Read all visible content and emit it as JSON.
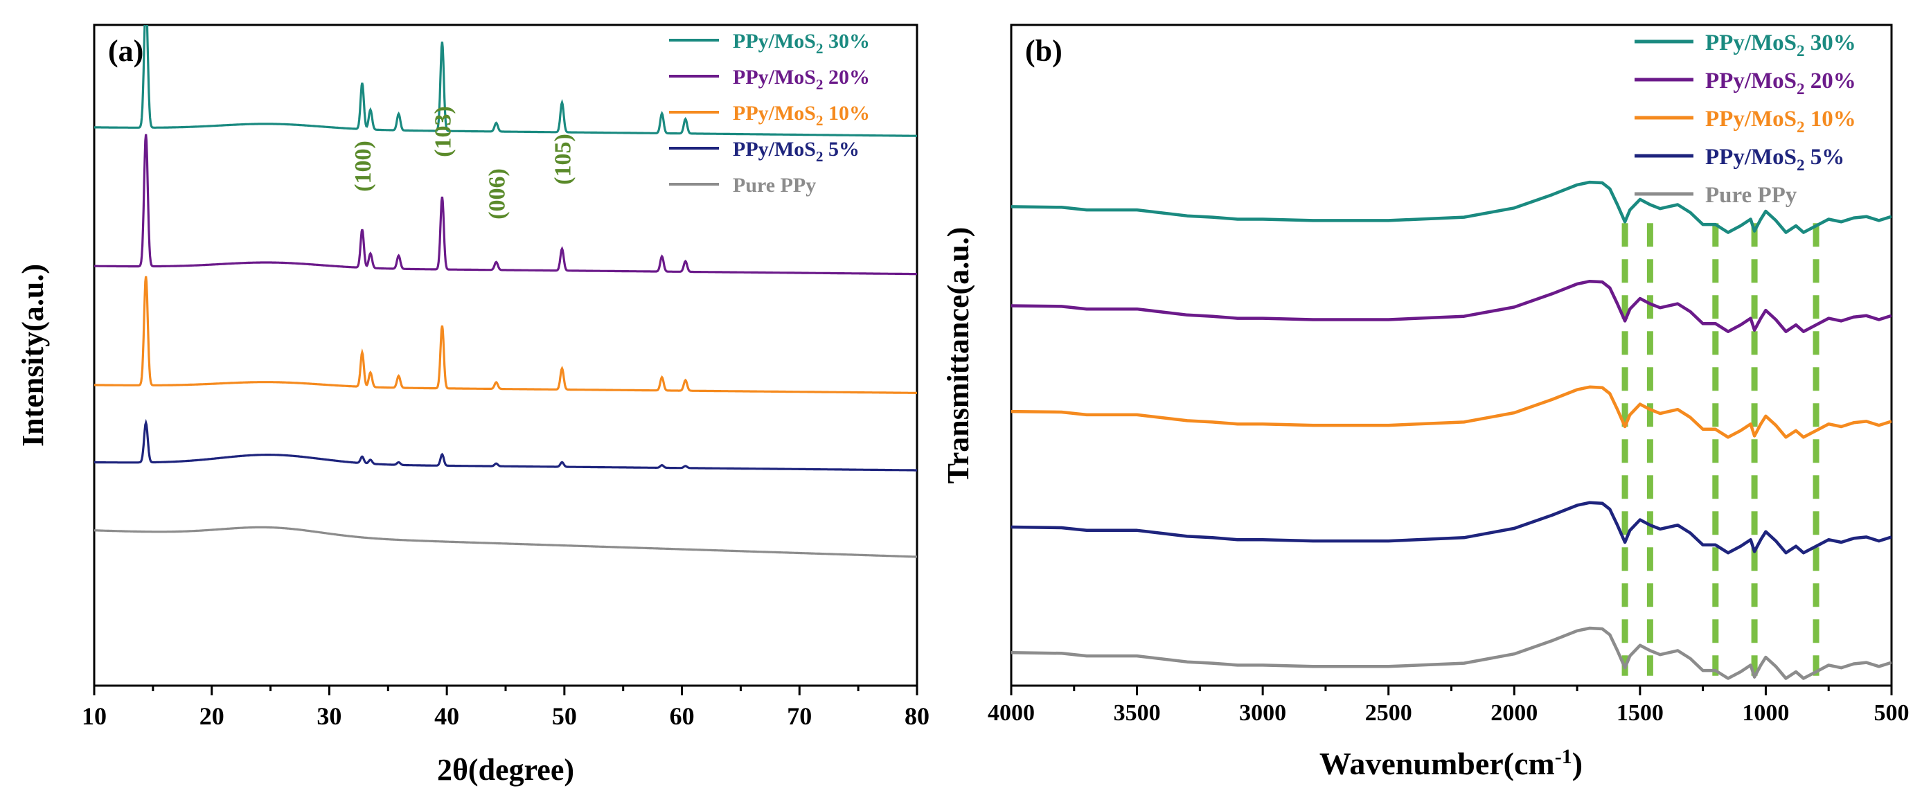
{
  "chart_data": [
    {
      "panel": "(a)",
      "type": "line",
      "xlabel": "2θ(degree)",
      "ylabel": "Intensity(a.u.)",
      "xlim": [
        10,
        80
      ],
      "ylim": [
        0,
        100
      ],
      "xticks": [
        10,
        20,
        30,
        40,
        50,
        60,
        70,
        80
      ],
      "yticks_shown": false,
      "legend_position": "top-right",
      "legend": [
        {
          "name": "PPy/MoS",
          "sub": "2",
          "pct": "30%",
          "color": "#1a8a80"
        },
        {
          "name": "PPy/MoS",
          "sub": "2",
          "pct": "20%",
          "color": "#6b1a8a"
        },
        {
          "name": "PPy/MoS",
          "sub": "2",
          "pct": "10%",
          "color": "#f58a1e"
        },
        {
          "name": "PPy/MoS",
          "sub": "2",
          "pct": "5%",
          "color": "#1e247d"
        },
        {
          "name": "Pure PPy",
          "sub": "",
          "pct": "",
          "color": "#8c8c8c"
        }
      ],
      "peak_labels": [
        {
          "label": "(100)",
          "x": 32.8
        },
        {
          "label": "(103)",
          "x": 39.6
        },
        {
          "label": "(006)",
          "x": 44.2
        },
        {
          "label": "(105)",
          "x": 49.8
        }
      ],
      "peak_positions": [
        14.4,
        32.8,
        33.5,
        35.9,
        39.6,
        44.2,
        49.8,
        58.3,
        60.3
      ],
      "series": [
        {
          "name": "PPy/MoS2 30%",
          "color": "#1a8a80",
          "baseline_start": 84.5,
          "baseline_end": 83.2,
          "hump": 0.8,
          "peak_heights": [
            19.5,
            7.0,
            3.0,
            2.5,
            13.5,
            1.3,
            4.5,
            3.0,
            2.2
          ]
        },
        {
          "name": "PPy/MoS2 20%",
          "color": "#6b1a8a",
          "baseline_start": 63.5,
          "baseline_end": 62.3,
          "hump": 0.8,
          "peak_heights": [
            20.0,
            5.8,
            2.2,
            2.0,
            11.0,
            1.2,
            3.3,
            2.3,
            1.6
          ]
        },
        {
          "name": "PPy/MoS2 10%",
          "color": "#f58a1e",
          "baseline_start": 45.5,
          "baseline_end": 44.3,
          "hump": 0.7,
          "peak_heights": [
            16.5,
            5.2,
            2.2,
            1.8,
            9.5,
            1.0,
            3.2,
            2.0,
            1.6
          ]
        },
        {
          "name": "PPy/MoS2 5%",
          "color": "#1e247d",
          "baseline_start": 33.8,
          "baseline_end": 32.6,
          "hump": 1.4,
          "peak_heights": [
            6.0,
            1.0,
            0.6,
            0.4,
            1.7,
            0.4,
            0.7,
            0.4,
            0.3
          ]
        },
        {
          "name": "Pure PPy",
          "color": "#8c8c8c",
          "baseline_start": 23.5,
          "baseline_end": 19.5,
          "hump": 1.3,
          "peak_heights": [
            0,
            0,
            0,
            0,
            0,
            0,
            0,
            0,
            0
          ]
        }
      ]
    },
    {
      "panel": "(b)",
      "type": "line",
      "xlabel": "Wavenumber(cm",
      "xlabel_sup": "-1",
      "xlabel_end": ")",
      "ylabel": "Transmittance(a.u.)",
      "xlim": [
        4000,
        500
      ],
      "ylim": [
        0,
        100
      ],
      "xticks": [
        4000,
        3500,
        3000,
        2500,
        2000,
        1500,
        1000,
        500
      ],
      "yticks_shown": false,
      "legend_position": "top-right",
      "legend": [
        {
          "name": "PPy/MoS",
          "sub": "2",
          "pct": "30%",
          "color": "#1a8a80"
        },
        {
          "name": "PPy/MoS",
          "sub": "2",
          "pct": "20%",
          "color": "#6b1a8a"
        },
        {
          "name": "PPy/MoS",
          "sub": "2",
          "pct": "10%",
          "color": "#f58a1e"
        },
        {
          "name": "PPy/MoS",
          "sub": "2",
          "pct": "5%",
          "color": "#1e247d"
        },
        {
          "name": "Pure PPy",
          "sub": "",
          "pct": "",
          "color": "#8c8c8c"
        }
      ],
      "reference_lines": [
        1560,
        1460,
        1200,
        1045,
        800
      ],
      "reference_line_color": "#7bbf44",
      "series": [
        {
          "name": "PPy/MoS2 30%",
          "color": "#1a8a80",
          "offset": 68
        },
        {
          "name": "PPy/MoS2 20%",
          "color": "#6b1a8a",
          "offset": 53
        },
        {
          "name": "PPy/MoS2 10%",
          "color": "#f58a1e",
          "offset": 37
        },
        {
          "name": "PPy/MoS2 5%",
          "color": "#1e247d",
          "offset": 19.5
        },
        {
          "name": "Pure PPy",
          "color": "#8c8c8c",
          "offset": 0.5
        }
      ],
      "ftir_profile": {
        "wavenumbers": [
          4000,
          3800,
          3700,
          3500,
          3300,
          3200,
          3100,
          3000,
          2800,
          2500,
          2200,
          2000,
          1850,
          1750,
          1700,
          1650,
          1620,
          1590,
          1560,
          1540,
          1500,
          1460,
          1420,
          1350,
          1300,
          1250,
          1200,
          1150,
          1100,
          1060,
          1045,
          1020,
          1000,
          960,
          920,
          880,
          850,
          800,
          750,
          700,
          650,
          600,
          550,
          500
        ],
        "relative": [
          4.5,
          4.4,
          4.0,
          4.0,
          3.1,
          2.9,
          2.6,
          2.6,
          2.4,
          2.4,
          2.9,
          4.3,
          6.3,
          7.8,
          8.2,
          8.1,
          7.2,
          4.8,
          2.2,
          4.0,
          5.6,
          4.8,
          4.2,
          4.8,
          3.6,
          1.8,
          1.8,
          0.6,
          1.6,
          2.6,
          0.8,
          2.6,
          3.8,
          2.4,
          0.6,
          1.6,
          0.6,
          1.6,
          2.6,
          2.2,
          2.8,
          3.0,
          2.4,
          3.0
        ]
      }
    }
  ]
}
